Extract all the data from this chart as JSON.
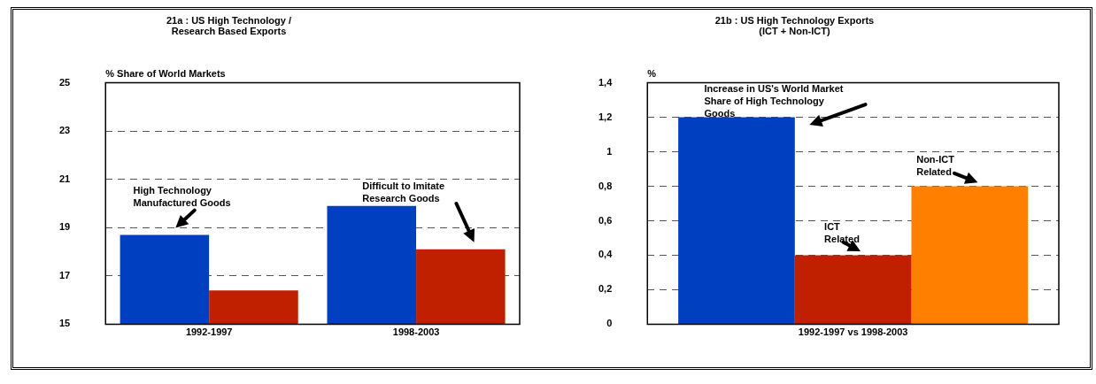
{
  "chart_data": [
    {
      "type": "bar",
      "title": "21a : US High Technology /\nResearch Based Exports",
      "ylabel": "% Share of World Markets",
      "categories": [
        "1992-1997",
        "1998-2003"
      ],
      "series": [
        {
          "color": "#0040c0",
          "values": [
            18.7,
            19.9
          ]
        },
        {
          "color": "#c02000",
          "values": [
            16.4,
            18.1
          ]
        }
      ],
      "ylim": [
        15,
        25
      ],
      "yticks": [
        15,
        17,
        19,
        21,
        23,
        25
      ],
      "grid": "y",
      "annotations": [
        "High Technology\nManufactured Goods",
        "Difficult to Imitate\nResearch Goods"
      ]
    },
    {
      "type": "bar",
      "title": "21b : US High Technology Exports\n(ICT + Non-ICT)",
      "ylabel": "%",
      "categories": [
        "1992-1997 vs 1998-2003"
      ],
      "series": [
        {
          "color": "#0040c0",
          "values": [
            1.2
          ]
        },
        {
          "color": "#c02000",
          "values": [
            0.4
          ]
        },
        {
          "color": "#ff8000",
          "values": [
            0.8
          ]
        }
      ],
      "ylim": [
        0,
        1.4
      ],
      "yticks": [
        0,
        {
          "value": 0.2,
          "label": "0,2"
        },
        {
          "value": 0.4,
          "label": "0,4"
        },
        {
          "value": 0.6,
          "label": "0,6"
        },
        {
          "value": 0.8,
          "label": "0,8"
        },
        1,
        {
          "value": 1.2,
          "label": "1,2"
        },
        {
          "value": 1.4,
          "label": "1,4"
        }
      ],
      "grid": "y",
      "annotations": [
        "Increase in US's World Market\nShare of High Technology\nGoods",
        "ICT\nRelated",
        "Non-ICT\nRelated"
      ]
    }
  ]
}
